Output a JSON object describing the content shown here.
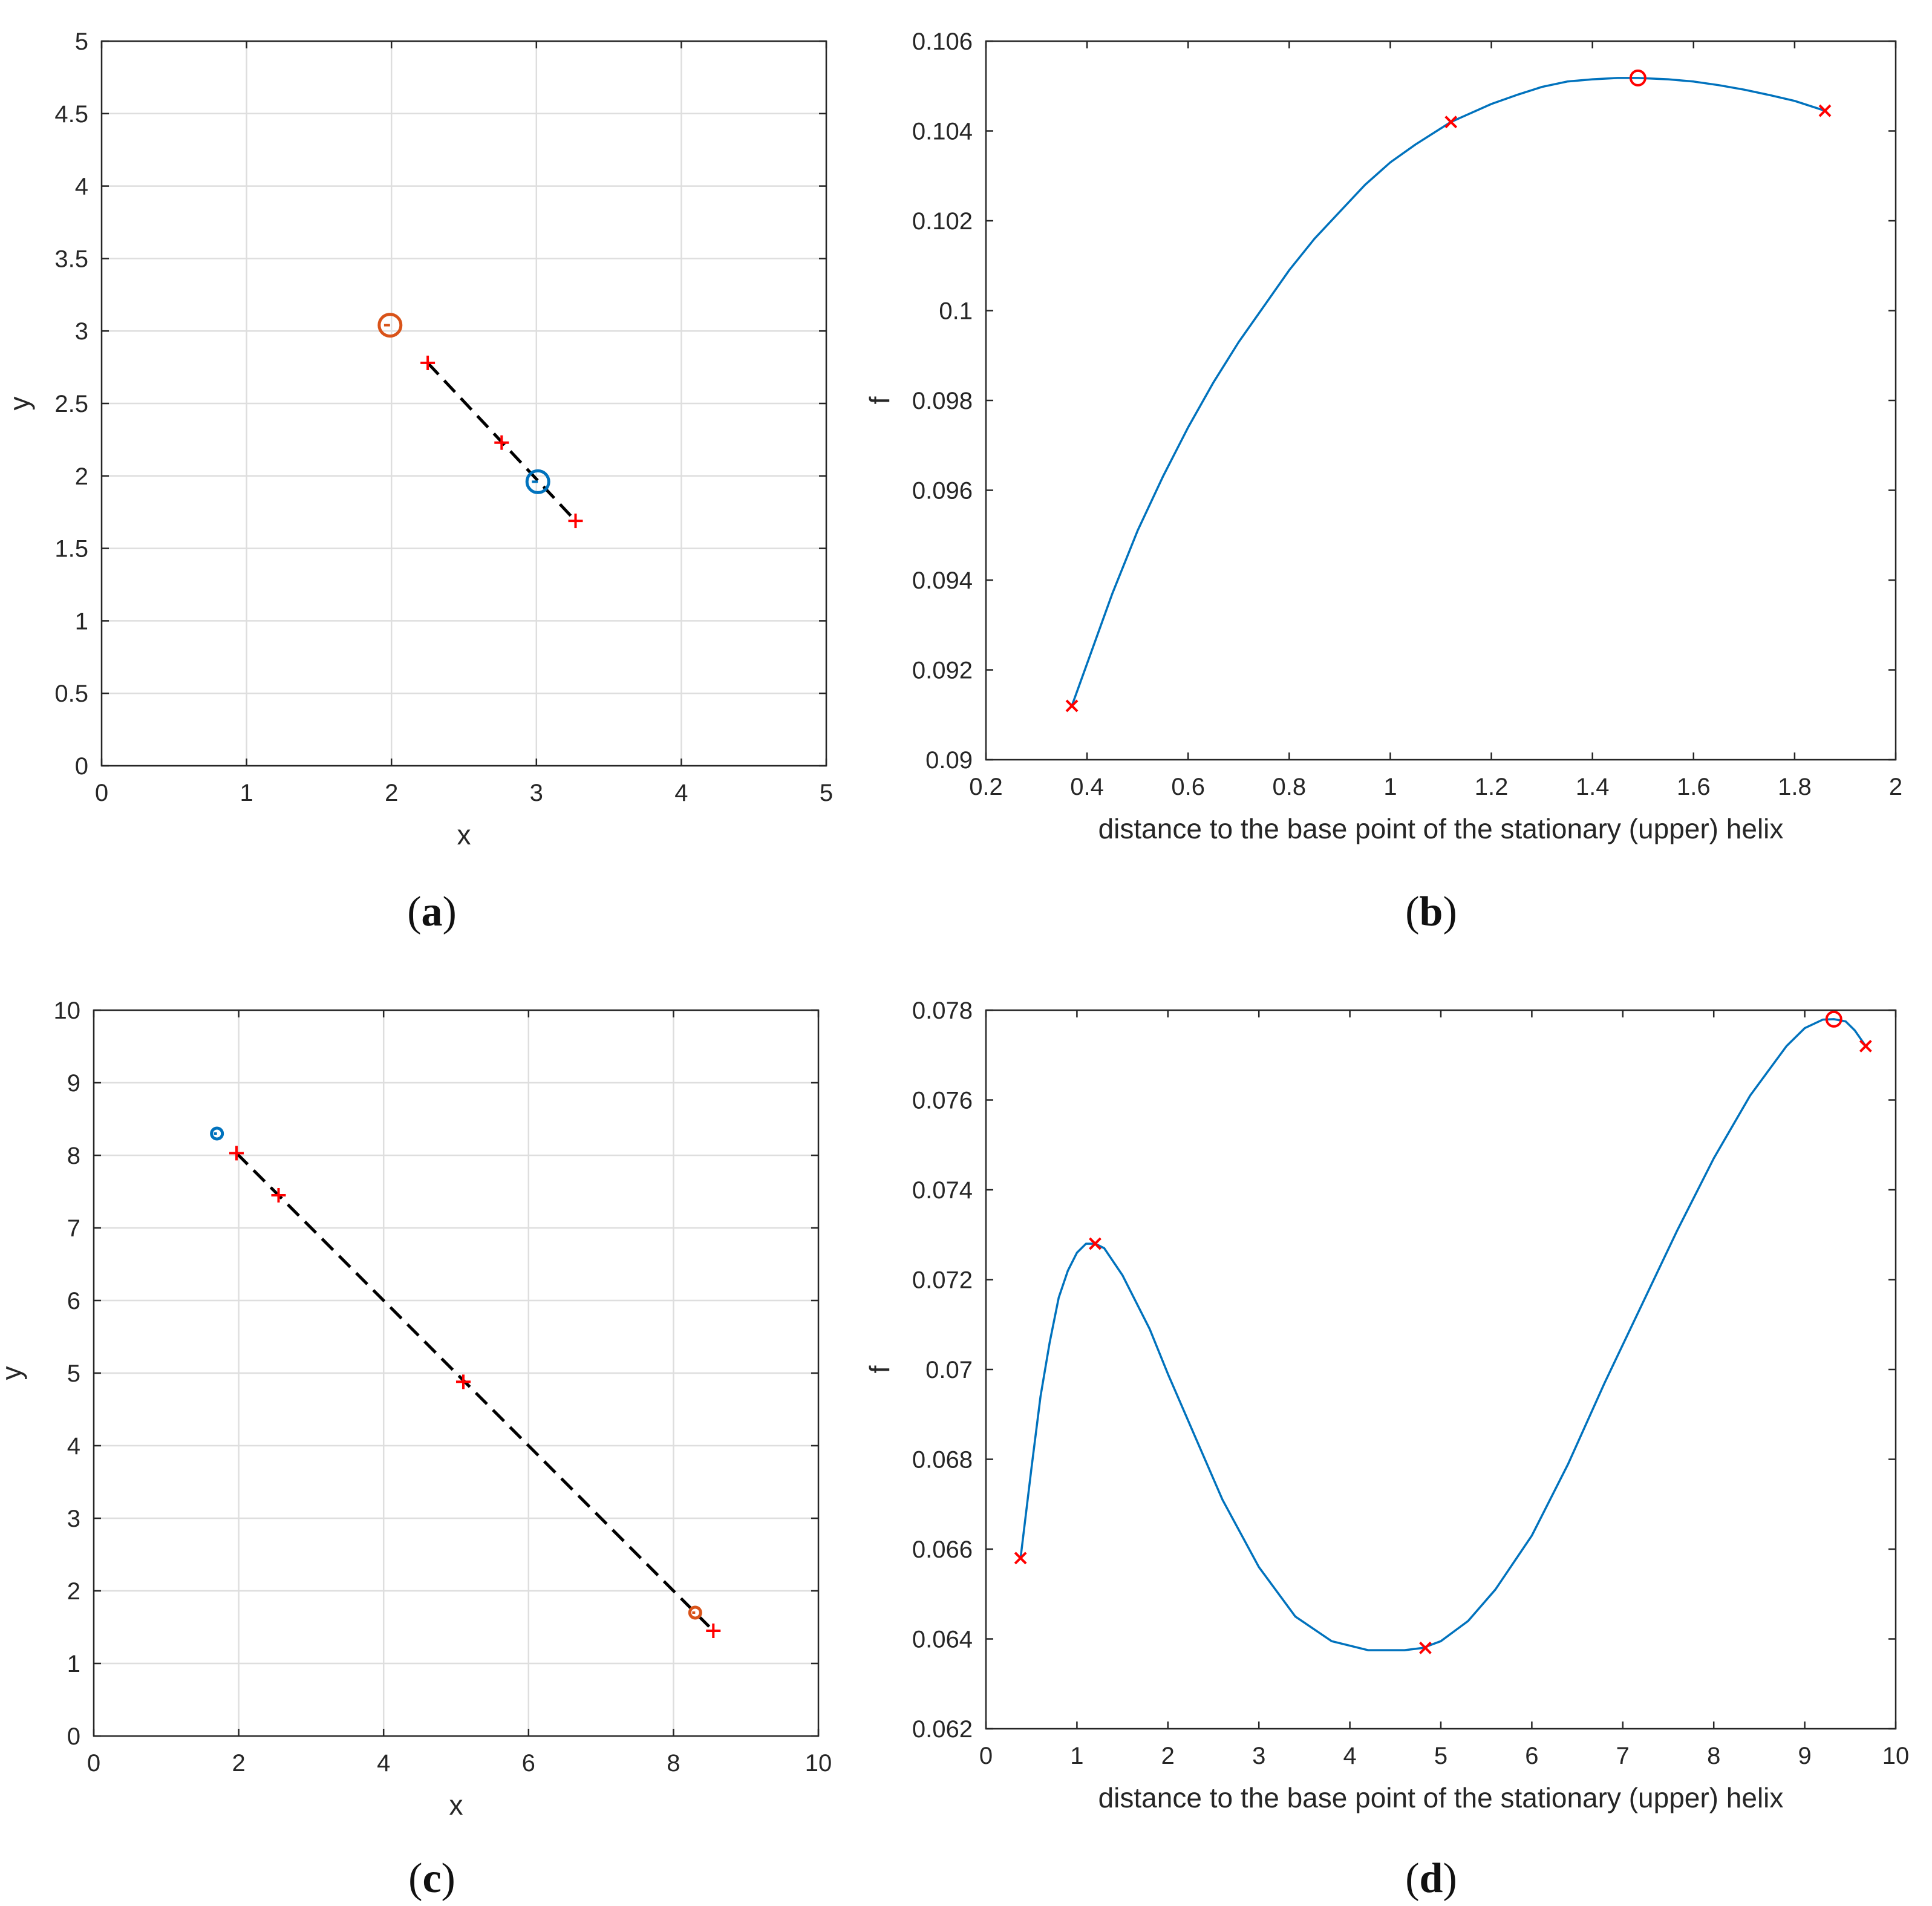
{
  "chart_data": [
    {
      "id": "a",
      "type": "scatter",
      "caption_letter": "a",
      "xlabel": "x",
      "ylabel": "y",
      "xlim": [
        0,
        5
      ],
      "ylim": [
        0,
        5
      ],
      "grid": true,
      "xticks": [
        0,
        1,
        2,
        3,
        4,
        5
      ],
      "xtick_labels": [
        "0",
        "1",
        "2",
        "3",
        "4",
        "5"
      ],
      "yticks": [
        0,
        0.5,
        1,
        1.5,
        2,
        2.5,
        3,
        3.5,
        4,
        4.5,
        5
      ],
      "ytick_labels": [
        "0",
        "0.5",
        "1",
        "1.5",
        "2",
        "2.5",
        "3",
        "3.5",
        "4",
        "4.5",
        "5"
      ],
      "dashed_line": [
        [
          2.25,
          2.78
        ],
        [
          3.27,
          1.69
        ]
      ],
      "plus_markers": [
        [
          2.25,
          2.78
        ],
        [
          2.76,
          2.23
        ],
        [
          3.27,
          1.69
        ]
      ],
      "helix_circles": [
        {
          "name": "upper",
          "x": 1.99,
          "y": 3.04,
          "color": "#D95319",
          "size": "large"
        },
        {
          "name": "lower",
          "x": 3.01,
          "y": 1.96,
          "color": "#0072BD",
          "size": "large"
        }
      ],
      "marker_color": "#FF0000"
    },
    {
      "id": "b",
      "type": "line",
      "caption_letter": "b",
      "xlabel": "distance to the base point of the stationary (upper) helix",
      "ylabel": "f",
      "xlim": [
        0.2,
        2
      ],
      "ylim": [
        0.09,
        0.106
      ],
      "grid": false,
      "xticks": [
        0.2,
        0.4,
        0.6,
        0.8,
        1,
        1.2,
        1.4,
        1.6,
        1.8,
        2
      ],
      "xtick_labels": [
        "0.2",
        "0.4",
        "0.6",
        "0.8",
        "1",
        "1.2",
        "1.4",
        "1.6",
        "1.8",
        "2"
      ],
      "yticks": [
        0.09,
        0.092,
        0.094,
        0.096,
        0.098,
        0.1,
        0.102,
        0.104,
        0.106
      ],
      "ytick_labels": [
        "0.09",
        "0.092",
        "0.094",
        "0.096",
        "0.098",
        "0.1",
        "0.102",
        "0.104",
        "0.106"
      ],
      "curve": {
        "x": [
          0.37,
          0.45,
          0.5,
          0.55,
          0.6,
          0.65,
          0.7,
          0.75,
          0.8,
          0.85,
          0.9,
          0.95,
          1.0,
          1.05,
          1.12,
          1.2,
          1.25,
          1.3,
          1.35,
          1.4,
          1.45,
          1.49,
          1.55,
          1.6,
          1.65,
          1.7,
          1.75,
          1.8,
          1.86
        ],
        "y": [
          0.0912,
          0.0937,
          0.0951,
          0.0963,
          0.0974,
          0.0984,
          0.0993,
          0.1001,
          0.1009,
          0.1016,
          0.1022,
          0.1028,
          0.1033,
          0.1037,
          0.1042,
          0.1046,
          0.1048,
          0.10498,
          0.1051,
          0.10515,
          0.10518,
          0.10518,
          0.10515,
          0.1051,
          0.10502,
          0.10492,
          0.1048,
          0.10467,
          0.10445
        ]
      },
      "x_markers": [
        [
          0.37,
          0.0912
        ],
        [
          1.12,
          0.1042
        ],
        [
          1.86,
          0.10445
        ]
      ],
      "max_circle": [
        1.49,
        0.10518
      ],
      "line_color": "#0072BD",
      "marker_color": "#FF0000"
    },
    {
      "id": "c",
      "type": "scatter",
      "caption_letter": "c",
      "xlabel": "x",
      "ylabel": "y",
      "xlim": [
        0,
        10
      ],
      "ylim": [
        0,
        10
      ],
      "grid": true,
      "xticks": [
        0,
        2,
        4,
        6,
        8,
        10
      ],
      "xtick_labels": [
        "0",
        "2",
        "4",
        "6",
        "8",
        "10"
      ],
      "yticks": [
        0,
        1,
        2,
        3,
        4,
        5,
        6,
        7,
        8,
        9,
        10
      ],
      "ytick_labels": [
        "0",
        "1",
        "2",
        "3",
        "4",
        "5",
        "6",
        "7",
        "8",
        "9",
        "10"
      ],
      "dashed_line": [
        [
          1.97,
          8.03
        ],
        [
          8.55,
          1.45
        ]
      ],
      "plus_markers": [
        [
          1.97,
          8.03
        ],
        [
          2.55,
          7.45
        ],
        [
          5.1,
          4.88
        ],
        [
          8.55,
          1.45
        ]
      ],
      "helix_circles": [
        {
          "name": "upper",
          "x": 1.7,
          "y": 8.3,
          "color": "#0072BD",
          "size": "small"
        },
        {
          "name": "lower",
          "x": 8.3,
          "y": 1.7,
          "color": "#D95319",
          "size": "small"
        }
      ],
      "marker_color": "#FF0000"
    },
    {
      "id": "d",
      "type": "line",
      "caption_letter": "d",
      "xlabel": "distance to the base point of the stationary (upper) helix",
      "ylabel": "f",
      "xlim": [
        0,
        10
      ],
      "ylim": [
        0.062,
        0.078
      ],
      "grid": false,
      "xticks": [
        0,
        1,
        2,
        3,
        4,
        5,
        6,
        7,
        8,
        9,
        10
      ],
      "xtick_labels": [
        "0",
        "1",
        "2",
        "3",
        "4",
        "5",
        "6",
        "7",
        "8",
        "9",
        "10"
      ],
      "yticks": [
        0.062,
        0.064,
        0.066,
        0.068,
        0.07,
        0.072,
        0.074,
        0.076,
        0.078
      ],
      "ytick_labels": [
        "0.062",
        "0.064",
        "0.066",
        "0.068",
        "0.07",
        "0.072",
        "0.074",
        "0.076",
        "0.078"
      ],
      "curve": {
        "x": [
          0.38,
          0.5,
          0.6,
          0.7,
          0.8,
          0.9,
          1.0,
          1.1,
          1.2,
          1.3,
          1.5,
          1.8,
          2.0,
          2.3,
          2.6,
          3.0,
          3.4,
          3.8,
          4.2,
          4.6,
          4.8,
          5.0,
          5.3,
          5.6,
          6.0,
          6.4,
          6.8,
          7.2,
          7.6,
          8.0,
          8.4,
          8.8,
          9.0,
          9.2,
          9.32,
          9.45,
          9.55,
          9.67
        ],
        "y": [
          0.0658,
          0.0678,
          0.0694,
          0.0706,
          0.0716,
          0.0722,
          0.0726,
          0.0728,
          0.0728,
          0.0727,
          0.0721,
          0.0709,
          0.0699,
          0.0685,
          0.0671,
          0.0656,
          0.0645,
          0.06395,
          0.06375,
          0.06375,
          0.0638,
          0.06395,
          0.0644,
          0.0651,
          0.0663,
          0.0679,
          0.0697,
          0.0714,
          0.0731,
          0.0747,
          0.0761,
          0.0772,
          0.0776,
          0.07779,
          0.0778,
          0.07775,
          0.07755,
          0.0772
        ]
      },
      "x_markers": [
        [
          0.38,
          0.0658
        ],
        [
          1.2,
          0.0728
        ],
        [
          4.83,
          0.0638
        ],
        [
          9.67,
          0.0772
        ]
      ],
      "max_circle": [
        9.32,
        0.0778
      ],
      "line_color": "#0072BD",
      "marker_color": "#FF0000"
    }
  ]
}
